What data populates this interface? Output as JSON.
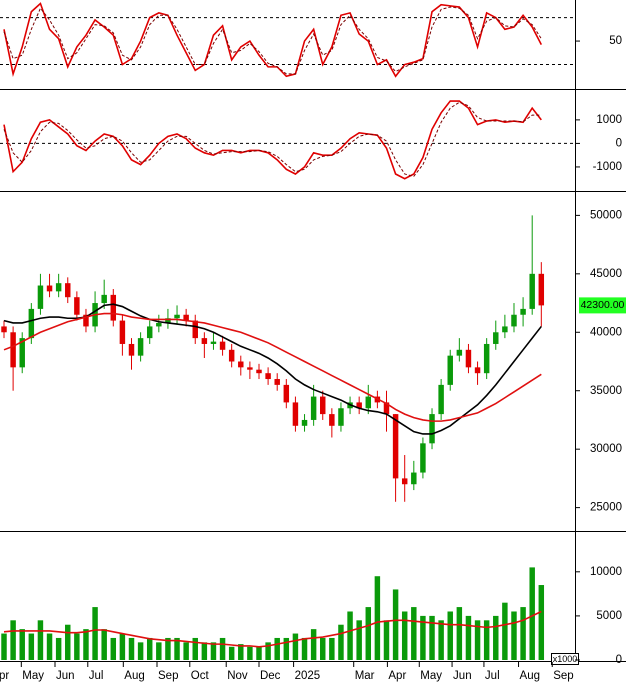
{
  "x_axis": {
    "x": [
      0,
      1,
      2,
      3,
      4,
      5,
      6,
      7,
      8,
      9,
      10,
      11,
      12,
      13,
      14,
      15,
      16,
      17,
      18,
      19,
      20,
      21,
      22,
      23,
      24,
      25,
      26,
      27,
      28,
      29,
      30,
      31,
      32,
      33,
      34,
      35,
      36,
      37,
      38,
      39,
      40,
      41,
      42,
      43,
      44,
      45,
      46,
      47,
      48,
      49,
      50,
      51,
      52,
      53,
      54,
      55,
      56,
      57,
      58,
      59
    ],
    "xlim": [
      -0.44,
      62.7
    ],
    "xticks": [
      {
        "value": -1.5,
        "label": "Apr"
      },
      {
        "value": 1.9,
        "label": "May"
      },
      {
        "value": 5.6,
        "label": "Jun"
      },
      {
        "value": 9.2,
        "label": "Jul"
      },
      {
        "value": 13.1,
        "label": "Aug"
      },
      {
        "value": 16.8,
        "label": "Sep"
      },
      {
        "value": 20.4,
        "label": "Oct"
      },
      {
        "value": 24.4,
        "label": "Nov"
      },
      {
        "value": 28.0,
        "label": "Dec"
      },
      {
        "value": 31.8,
        "label": "2025"
      },
      {
        "value": 38.4,
        "label": "Mar"
      },
      {
        "value": 42.1,
        "label": "Apr"
      },
      {
        "value": 45.6,
        "label": "May"
      },
      {
        "value": 49.2,
        "label": "Jun"
      },
      {
        "value": 52.7,
        "label": "Jul"
      },
      {
        "value": 56.5,
        "label": "Aug"
      },
      {
        "value": 60.2,
        "label": "Sep"
      }
    ]
  },
  "chart_data": [
    {
      "type": "line",
      "ylim": [
        10,
        85
      ],
      "yticks": [
        50
      ],
      "levels": [
        70,
        30
      ],
      "series": [
        {
          "color": "#e00000",
          "dash": false,
          "values": [
            60,
            22,
            45,
            75,
            82,
            60,
            52,
            28,
            45,
            55,
            68,
            62,
            55,
            30,
            35,
            50,
            70,
            74,
            72,
            55,
            40,
            25,
            30,
            55,
            63,
            34,
            45,
            50,
            38,
            28,
            28,
            20,
            22,
            50,
            60,
            30,
            45,
            72,
            74,
            56,
            50,
            30,
            34,
            20,
            30,
            32,
            35,
            75,
            81,
            80,
            79,
            70,
            45,
            74,
            70,
            60,
            62,
            72,
            62,
            47
          ]
        },
        {
          "color": "#7a0000",
          "dash": true,
          "values": [
            58,
            35,
            38,
            60,
            78,
            68,
            55,
            35,
            40,
            52,
            64,
            63,
            57,
            38,
            34,
            45,
            64,
            72,
            72,
            60,
            45,
            30,
            30,
            48,
            60,
            40,
            42,
            48,
            41,
            31,
            28,
            22,
            22,
            42,
            56,
            38,
            42,
            64,
            72,
            60,
            52,
            36,
            33,
            24,
            28,
            31,
            34,
            62,
            77,
            79,
            78,
            72,
            52,
            67,
            70,
            63,
            62,
            69,
            64,
            52
          ]
        }
      ]
    },
    {
      "type": "line",
      "ylim": [
        -1980,
        2270
      ],
      "yticks": [
        1000,
        0,
        -1000
      ],
      "levels": [
        0
      ],
      "series": [
        {
          "color": "#e00000",
          "dash": false,
          "values": [
            800,
            -1200,
            -800,
            200,
            900,
            1000,
            700,
            400,
            -100,
            -300,
            100,
            400,
            300,
            -100,
            -700,
            -900,
            -500,
            0,
            300,
            400,
            200,
            -200,
            -400,
            -500,
            -300,
            -300,
            -400,
            -300,
            -300,
            -400,
            -700,
            -1100,
            -1300,
            -1000,
            -400,
            -500,
            -500,
            -200,
            200,
            450,
            400,
            350,
            -200,
            -1300,
            -1500,
            -1300,
            -600,
            600,
            1300,
            1800,
            1800,
            1500,
            800,
            950,
            1000,
            900,
            950,
            900,
            1500,
            1000
          ]
        },
        {
          "color": "#7a0000",
          "dash": true,
          "values": [
            600,
            -400,
            -800,
            -300,
            500,
            900,
            850,
            550,
            150,
            -200,
            -100,
            200,
            300,
            100,
            -400,
            -800,
            -700,
            -300,
            100,
            300,
            300,
            0,
            -300,
            -450,
            -400,
            -350,
            -350,
            -350,
            -300,
            -350,
            -550,
            -900,
            -1200,
            -1100,
            -700,
            -550,
            -500,
            -350,
            0,
            300,
            400,
            350,
            100,
            -700,
            -1300,
            -1400,
            -900,
            0,
            900,
            1500,
            1750,
            1600,
            1100,
            950,
            950,
            950,
            950,
            920,
            1200,
            1200
          ]
        }
      ]
    },
    {
      "type": "candlestick",
      "ylim": [
        23000,
        52000
      ],
      "yticks": [
        25000,
        30000,
        35000,
        40000,
        45000,
        50000
      ],
      "up_color": "#0a9a0a",
      "down_color": "#e00000",
      "open": [
        40500,
        40000,
        37000,
        39500,
        42000,
        44000,
        43500,
        44200,
        43000,
        41500,
        40500,
        42500,
        43200,
        41000,
        39000,
        38000,
        39500,
        40500,
        40800,
        41200,
        41500,
        41000,
        39500,
        39000,
        39200,
        38500,
        37500,
        37000,
        36800,
        36500,
        36000,
        35500,
        34000,
        32000,
        32500,
        34500,
        33000,
        32000,
        33500,
        34000,
        33500,
        34500,
        34000,
        33000,
        27500,
        27000,
        28000,
        30500,
        33000,
        35500,
        38000,
        38500,
        37000,
        36500,
        39000,
        40000,
        40500,
        41500,
        42000,
        45000
      ],
      "high": [
        41000,
        40500,
        40000,
        42500,
        45000,
        45000,
        45000,
        44700,
        43500,
        42000,
        43500,
        44500,
        43700,
        41500,
        39500,
        40000,
        41000,
        41500,
        42000,
        42300,
        42000,
        41500,
        40000,
        40000,
        39700,
        39000,
        38000,
        37500,
        37300,
        37000,
        36500,
        36000,
        34500,
        33000,
        35500,
        35000,
        33500,
        34000,
        34500,
        34500,
        35500,
        35000,
        35000,
        33000,
        29500,
        29000,
        31000,
        33500,
        36000,
        38500,
        39500,
        39000,
        37500,
        39500,
        41000,
        41500,
        42500,
        43000,
        50000,
        46000
      ],
      "low": [
        39500,
        35000,
        36500,
        39000,
        41500,
        43000,
        43000,
        42500,
        41000,
        40000,
        40000,
        42000,
        40500,
        38000,
        36800,
        37500,
        39000,
        40000,
        40300,
        40700,
        40500,
        39000,
        37800,
        38500,
        38000,
        37000,
        36300,
        36000,
        36000,
        35500,
        35000,
        33500,
        31500,
        31500,
        32000,
        32500,
        31000,
        31500,
        33000,
        33000,
        33000,
        33500,
        31500,
        25500,
        25500,
        26500,
        27500,
        30000,
        32500,
        35000,
        37500,
        36500,
        35500,
        36000,
        38500,
        39500,
        40000,
        40500,
        41500,
        40500
      ],
      "close": [
        40000,
        37000,
        39500,
        42000,
        44000,
        43500,
        44200,
        43000,
        41500,
        40500,
        42500,
        43200,
        41000,
        39000,
        38000,
        39500,
        40500,
        40800,
        41200,
        41500,
        41000,
        39500,
        39000,
        39200,
        38500,
        37500,
        37000,
        36800,
        36500,
        36000,
        35500,
        34000,
        32000,
        32500,
        34500,
        33000,
        32000,
        33500,
        34000,
        33500,
        34500,
        34000,
        33000,
        27500,
        27000,
        28000,
        30500,
        33000,
        35500,
        38000,
        38500,
        37000,
        36500,
        39000,
        40000,
        40500,
        41500,
        42000,
        45000,
        42300
      ],
      "series": [
        {
          "color": "#000000",
          "dash": false,
          "values": [
            41000,
            40800,
            40800,
            41000,
            41200,
            41300,
            41300,
            41200,
            41200,
            41300,
            41800,
            42300,
            42400,
            42200,
            41800,
            41400,
            41100,
            40900,
            40800,
            40700,
            40600,
            40500,
            40300,
            40000,
            39600,
            39200,
            38800,
            38500,
            38200,
            37800,
            37300,
            36700,
            36000,
            35500,
            35100,
            34800,
            34500,
            34200,
            33800,
            33500,
            33300,
            33200,
            33000,
            32500,
            32000,
            31500,
            31300,
            31300,
            31600,
            32000,
            32600,
            33200,
            33800,
            34600,
            35500,
            36500,
            37500,
            38500,
            39500,
            40500
          ]
        },
        {
          "color": "#e01010",
          "dash": false,
          "values": [
            38500,
            38800,
            39200,
            39600,
            40000,
            40300,
            40600,
            40900,
            41100,
            41300,
            41500,
            41600,
            41600,
            41500,
            41300,
            41200,
            41100,
            41100,
            41100,
            41100,
            41000,
            40900,
            40800,
            40600,
            40400,
            40200,
            40000,
            39700,
            39400,
            39100,
            38700,
            38300,
            37900,
            37500,
            37100,
            36700,
            36300,
            35900,
            35500,
            35100,
            34700,
            34300,
            33900,
            33400,
            33000,
            32700,
            32500,
            32400,
            32400,
            32500,
            32700,
            32900,
            33100,
            33500,
            33900,
            34400,
            34900,
            35400,
            35900,
            36400
          ]
        }
      ],
      "last_label": {
        "value": 42300,
        "label": "42300.00",
        "color": "#22ff22"
      }
    },
    {
      "type": "bar",
      "ylim": [
        0,
        14400
      ],
      "yticks": [
        0,
        5000,
        10000
      ],
      "unit_label": "x1000",
      "color": "#0a9a0a",
      "values": [
        3000,
        4500,
        3500,
        3000,
        4500,
        3000,
        2500,
        4000,
        3000,
        3500,
        6000,
        3500,
        2500,
        3000,
        2500,
        2000,
        2500,
        2000,
        2500,
        2500,
        2000,
        2500,
        2000,
        2000,
        2500,
        1500,
        1800,
        1500,
        1500,
        2000,
        2500,
        2500,
        3000,
        2500,
        3500,
        2500,
        2500,
        4000,
        5500,
        4500,
        6000,
        9500,
        4500,
        8000,
        5500,
        6000,
        5000,
        5000,
        4500,
        5500,
        6000,
        5000,
        4500,
        4500,
        5000,
        6500,
        5500,
        6000,
        10500,
        8500
      ],
      "series": [
        {
          "color": "#e01010",
          "dash": false,
          "values": [
            3200,
            3300,
            3300,
            3300,
            3300,
            3300,
            3200,
            3100,
            3100,
            3200,
            3400,
            3400,
            3200,
            3000,
            2800,
            2600,
            2400,
            2300,
            2200,
            2200,
            2100,
            2000,
            1900,
            1800,
            1800,
            1700,
            1600,
            1600,
            1500,
            1600,
            1800,
            2000,
            2200,
            2400,
            2500,
            2600,
            2800,
            3000,
            3300,
            3600,
            3900,
            4300,
            4400,
            4500,
            4500,
            4400,
            4300,
            4200,
            4100,
            4000,
            4000,
            3900,
            3800,
            3700,
            3800,
            4000,
            4200,
            4500,
            5000,
            5500
          ]
        }
      ]
    }
  ]
}
